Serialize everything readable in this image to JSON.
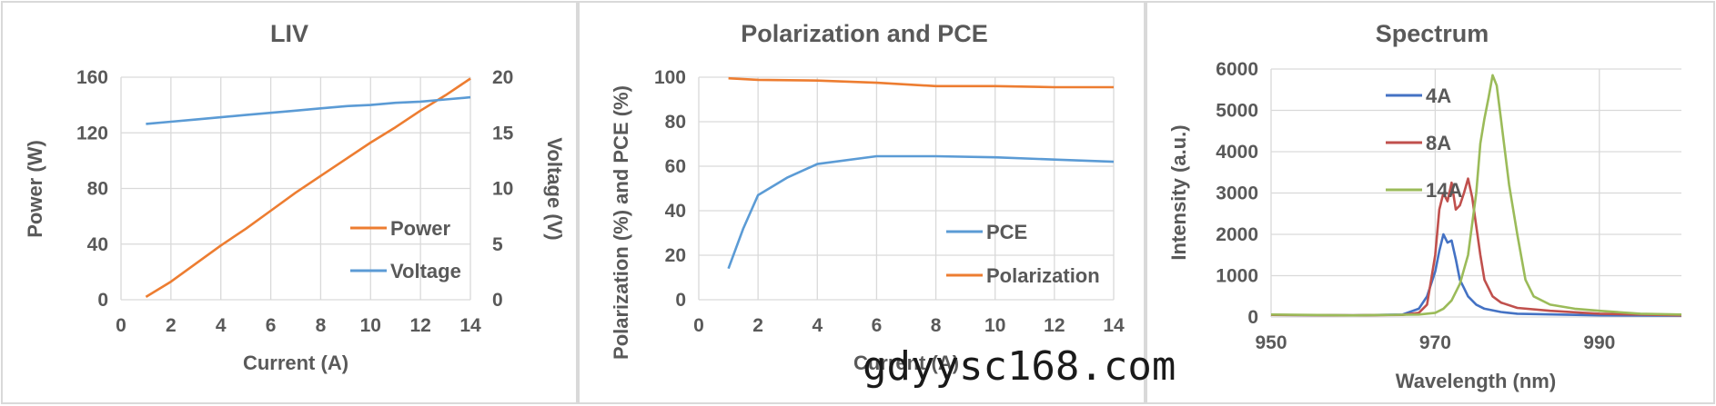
{
  "watermark": "gdyysc168.com",
  "chart_data": [
    {
      "type": "line",
      "title": "LIV",
      "xlabel": "Current (A)",
      "ylabel": "Power (W)",
      "y2label": "Voltage (V)",
      "xlim": [
        0,
        14
      ],
      "ylim": [
        0,
        160
      ],
      "y2lim": [
        0,
        20
      ],
      "xticks": [
        "0",
        "2",
        "4",
        "6",
        "8",
        "10",
        "12",
        "14"
      ],
      "yticks": [
        "0",
        "40",
        "80",
        "120",
        "160"
      ],
      "y2ticks": [
        "0",
        "5",
        "10",
        "15",
        "20"
      ],
      "grid": true,
      "legend_position": "bottom-right",
      "series": [
        {
          "name": "Power",
          "axis": "left",
          "color": "#ed7d31",
          "x": [
            1,
            2,
            3,
            4,
            5,
            6,
            7,
            8,
            9,
            10,
            11,
            12,
            13,
            14
          ],
          "y": [
            2,
            13,
            26,
            39,
            51,
            64,
            77,
            89,
            101,
            113,
            124,
            136,
            147,
            159
          ]
        },
        {
          "name": "Voltage",
          "axis": "right",
          "color": "#5b9bd5",
          "x": [
            1,
            2,
            3,
            4,
            5,
            6,
            7,
            8,
            9,
            10,
            11,
            12,
            13,
            14
          ],
          "y": [
            15.8,
            16.0,
            16.2,
            16.4,
            16.6,
            16.8,
            17.0,
            17.2,
            17.4,
            17.5,
            17.7,
            17.8,
            18.0,
            18.2
          ]
        }
      ]
    },
    {
      "type": "line",
      "title": "Polarization and PCE",
      "xlabel": "Current (A)",
      "ylabel": "Polarization (%) and PCE (%)",
      "xlim": [
        0,
        14
      ],
      "ylim": [
        0,
        100
      ],
      "xticks": [
        "0",
        "2",
        "4",
        "6",
        "8",
        "10",
        "12",
        "14"
      ],
      "yticks": [
        "0",
        "20",
        "40",
        "60",
        "80",
        "100"
      ],
      "grid": true,
      "legend_position": "bottom-right",
      "series": [
        {
          "name": "PCE",
          "color": "#5b9bd5",
          "x": [
            1,
            1.5,
            2,
            3,
            4,
            6,
            8,
            10,
            12,
            14
          ],
          "y": [
            14,
            32,
            47,
            55,
            61,
            64.5,
            64.5,
            64,
            63,
            62
          ]
        },
        {
          "name": "Polarization",
          "color": "#ed7d31",
          "x": [
            1,
            2,
            4,
            6,
            8,
            10,
            12,
            14
          ],
          "y": [
            99.5,
            98.8,
            98.5,
            97.5,
            96,
            96,
            95.5,
            95.5
          ]
        }
      ]
    },
    {
      "type": "line",
      "title": "Spectrum",
      "xlabel": "Wavelength (nm)",
      "ylabel": "Intensity (a.u.)",
      "xlim": [
        950,
        1000
      ],
      "ylim": [
        0,
        6000
      ],
      "xticks": [
        "950",
        "970",
        "990"
      ],
      "xtick_values": [
        950,
        970,
        990
      ],
      "yticks": [
        "0",
        "1000",
        "2000",
        "3000",
        "4000",
        "5000",
        "6000"
      ],
      "grid": true,
      "legend_position": "top-right",
      "series": [
        {
          "name": "4A",
          "color": "#4472c4",
          "x": [
            950,
            960,
            966,
            968,
            969,
            970,
            970.5,
            971,
            971.5,
            972,
            972.5,
            973,
            973.5,
            974,
            975,
            976,
            978,
            980,
            985,
            990,
            1000
          ],
          "y": [
            50,
            40,
            60,
            200,
            500,
            1100,
            1600,
            2000,
            1800,
            1850,
            1400,
            900,
            700,
            500,
            300,
            200,
            120,
            80,
            60,
            40,
            30
          ]
        },
        {
          "name": "8A",
          "color": "#c0504d",
          "x": [
            950,
            960,
            966,
            968,
            969,
            970,
            970.5,
            971,
            971.5,
            972,
            972.5,
            973,
            973.5,
            974,
            974.5,
            975,
            975.5,
            976,
            977,
            978,
            980,
            984,
            990,
            1000
          ],
          "y": [
            50,
            40,
            50,
            100,
            300,
            1500,
            2600,
            3000,
            2800,
            3250,
            2600,
            2700,
            3000,
            3350,
            2900,
            2200,
            1500,
            900,
            500,
            350,
            220,
            150,
            80,
            40
          ]
        },
        {
          "name": "14A",
          "color": "#9bbb59",
          "x": [
            950,
            960,
            968,
            970,
            971,
            972,
            973,
            974,
            975,
            975.5,
            976,
            976.5,
            977,
            977.5,
            978,
            978.5,
            979,
            980,
            981,
            982,
            984,
            987,
            990,
            995,
            1000
          ],
          "y": [
            60,
            40,
            60,
            100,
            200,
            400,
            800,
            1500,
            3000,
            4200,
            4800,
            5300,
            5850,
            5600,
            4800,
            4000,
            3200,
            2000,
            900,
            500,
            300,
            200,
            150,
            80,
            60
          ]
        }
      ]
    }
  ]
}
